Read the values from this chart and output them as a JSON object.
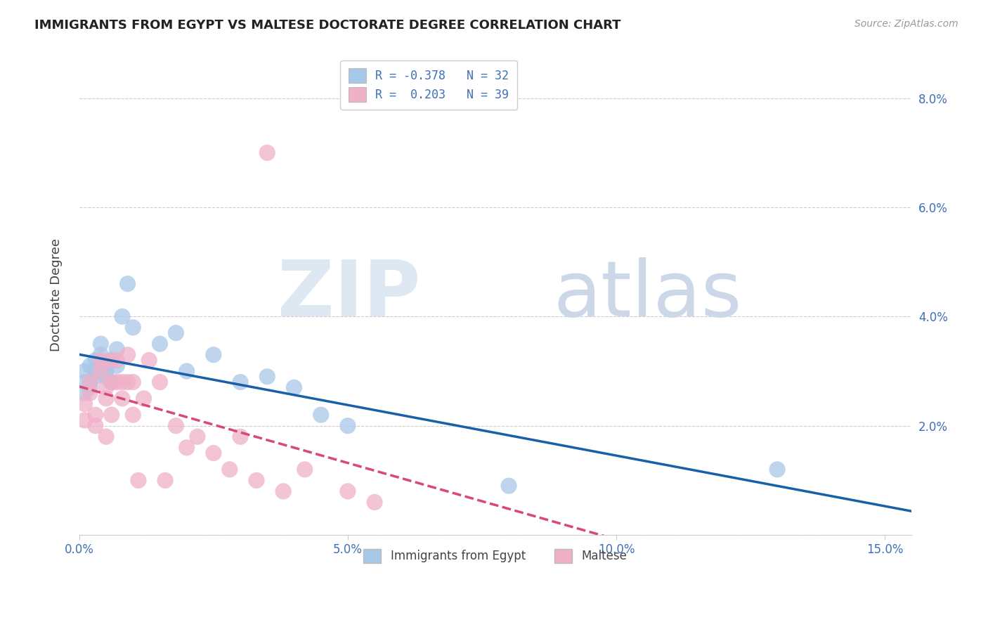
{
  "title": "IMMIGRANTS FROM EGYPT VS MALTESE DOCTORATE DEGREE CORRELATION CHART",
  "source": "Source: ZipAtlas.com",
  "ylabel": "Doctorate Degree",
  "xlim": [
    0.0,
    0.155
  ],
  "ylim": [
    0.0,
    0.088
  ],
  "xtick_vals": [
    0.0,
    0.05,
    0.1,
    0.15
  ],
  "xtick_labels": [
    "0.0%",
    "5.0%",
    "10.0%",
    "15.0%"
  ],
  "ytick_vals": [
    0.0,
    0.02,
    0.04,
    0.06,
    0.08
  ],
  "ytick_left_labels": [
    "",
    "",
    "",
    "",
    ""
  ],
  "ytick_right_labels": [
    "",
    "2.0%",
    "4.0%",
    "6.0%",
    "8.0%"
  ],
  "egypt_color": "#a8c8e8",
  "maltese_color": "#f0b0c8",
  "egypt_line_color": "#1a5faa",
  "maltese_line_color": "#d84878",
  "grid_color": "#cccccc",
  "title_color": "#222222",
  "tick_color": "#4070b8",
  "source_color": "#999999",
  "background_color": "#ffffff",
  "egypt_r": "-0.378",
  "egypt_n": "32",
  "maltese_r": "0.203",
  "maltese_n": "39",
  "egypt_x": [
    0.001,
    0.001,
    0.001,
    0.002,
    0.002,
    0.002,
    0.003,
    0.003,
    0.003,
    0.004,
    0.004,
    0.005,
    0.005,
    0.005,
    0.006,
    0.006,
    0.007,
    0.007,
    0.008,
    0.009,
    0.01,
    0.015,
    0.018,
    0.02,
    0.025,
    0.03,
    0.035,
    0.04,
    0.045,
    0.05,
    0.08,
    0.13
  ],
  "egypt_y": [
    0.028,
    0.03,
    0.026,
    0.031,
    0.028,
    0.027,
    0.032,
    0.03,
    0.029,
    0.035,
    0.033,
    0.03,
    0.031,
    0.029,
    0.032,
    0.028,
    0.034,
    0.031,
    0.04,
    0.046,
    0.038,
    0.035,
    0.037,
    0.03,
    0.033,
    0.028,
    0.029,
    0.027,
    0.022,
    0.02,
    0.009,
    0.012
  ],
  "maltese_x": [
    0.001,
    0.001,
    0.002,
    0.002,
    0.003,
    0.003,
    0.004,
    0.004,
    0.005,
    0.005,
    0.005,
    0.006,
    0.006,
    0.006,
    0.007,
    0.007,
    0.008,
    0.008,
    0.009,
    0.009,
    0.01,
    0.01,
    0.011,
    0.012,
    0.013,
    0.015,
    0.016,
    0.018,
    0.02,
    0.022,
    0.025,
    0.028,
    0.03,
    0.033,
    0.035,
    0.038,
    0.042,
    0.05,
    0.055
  ],
  "maltese_y": [
    0.024,
    0.021,
    0.028,
    0.026,
    0.022,
    0.02,
    0.032,
    0.03,
    0.027,
    0.025,
    0.018,
    0.032,
    0.028,
    0.022,
    0.032,
    0.028,
    0.028,
    0.025,
    0.033,
    0.028,
    0.028,
    0.022,
    0.01,
    0.025,
    0.032,
    0.028,
    0.01,
    0.02,
    0.016,
    0.018,
    0.015,
    0.012,
    0.018,
    0.01,
    0.07,
    0.008,
    0.012,
    0.008,
    0.006
  ],
  "figwidth": 14.06,
  "figheight": 8.92,
  "dpi": 100
}
